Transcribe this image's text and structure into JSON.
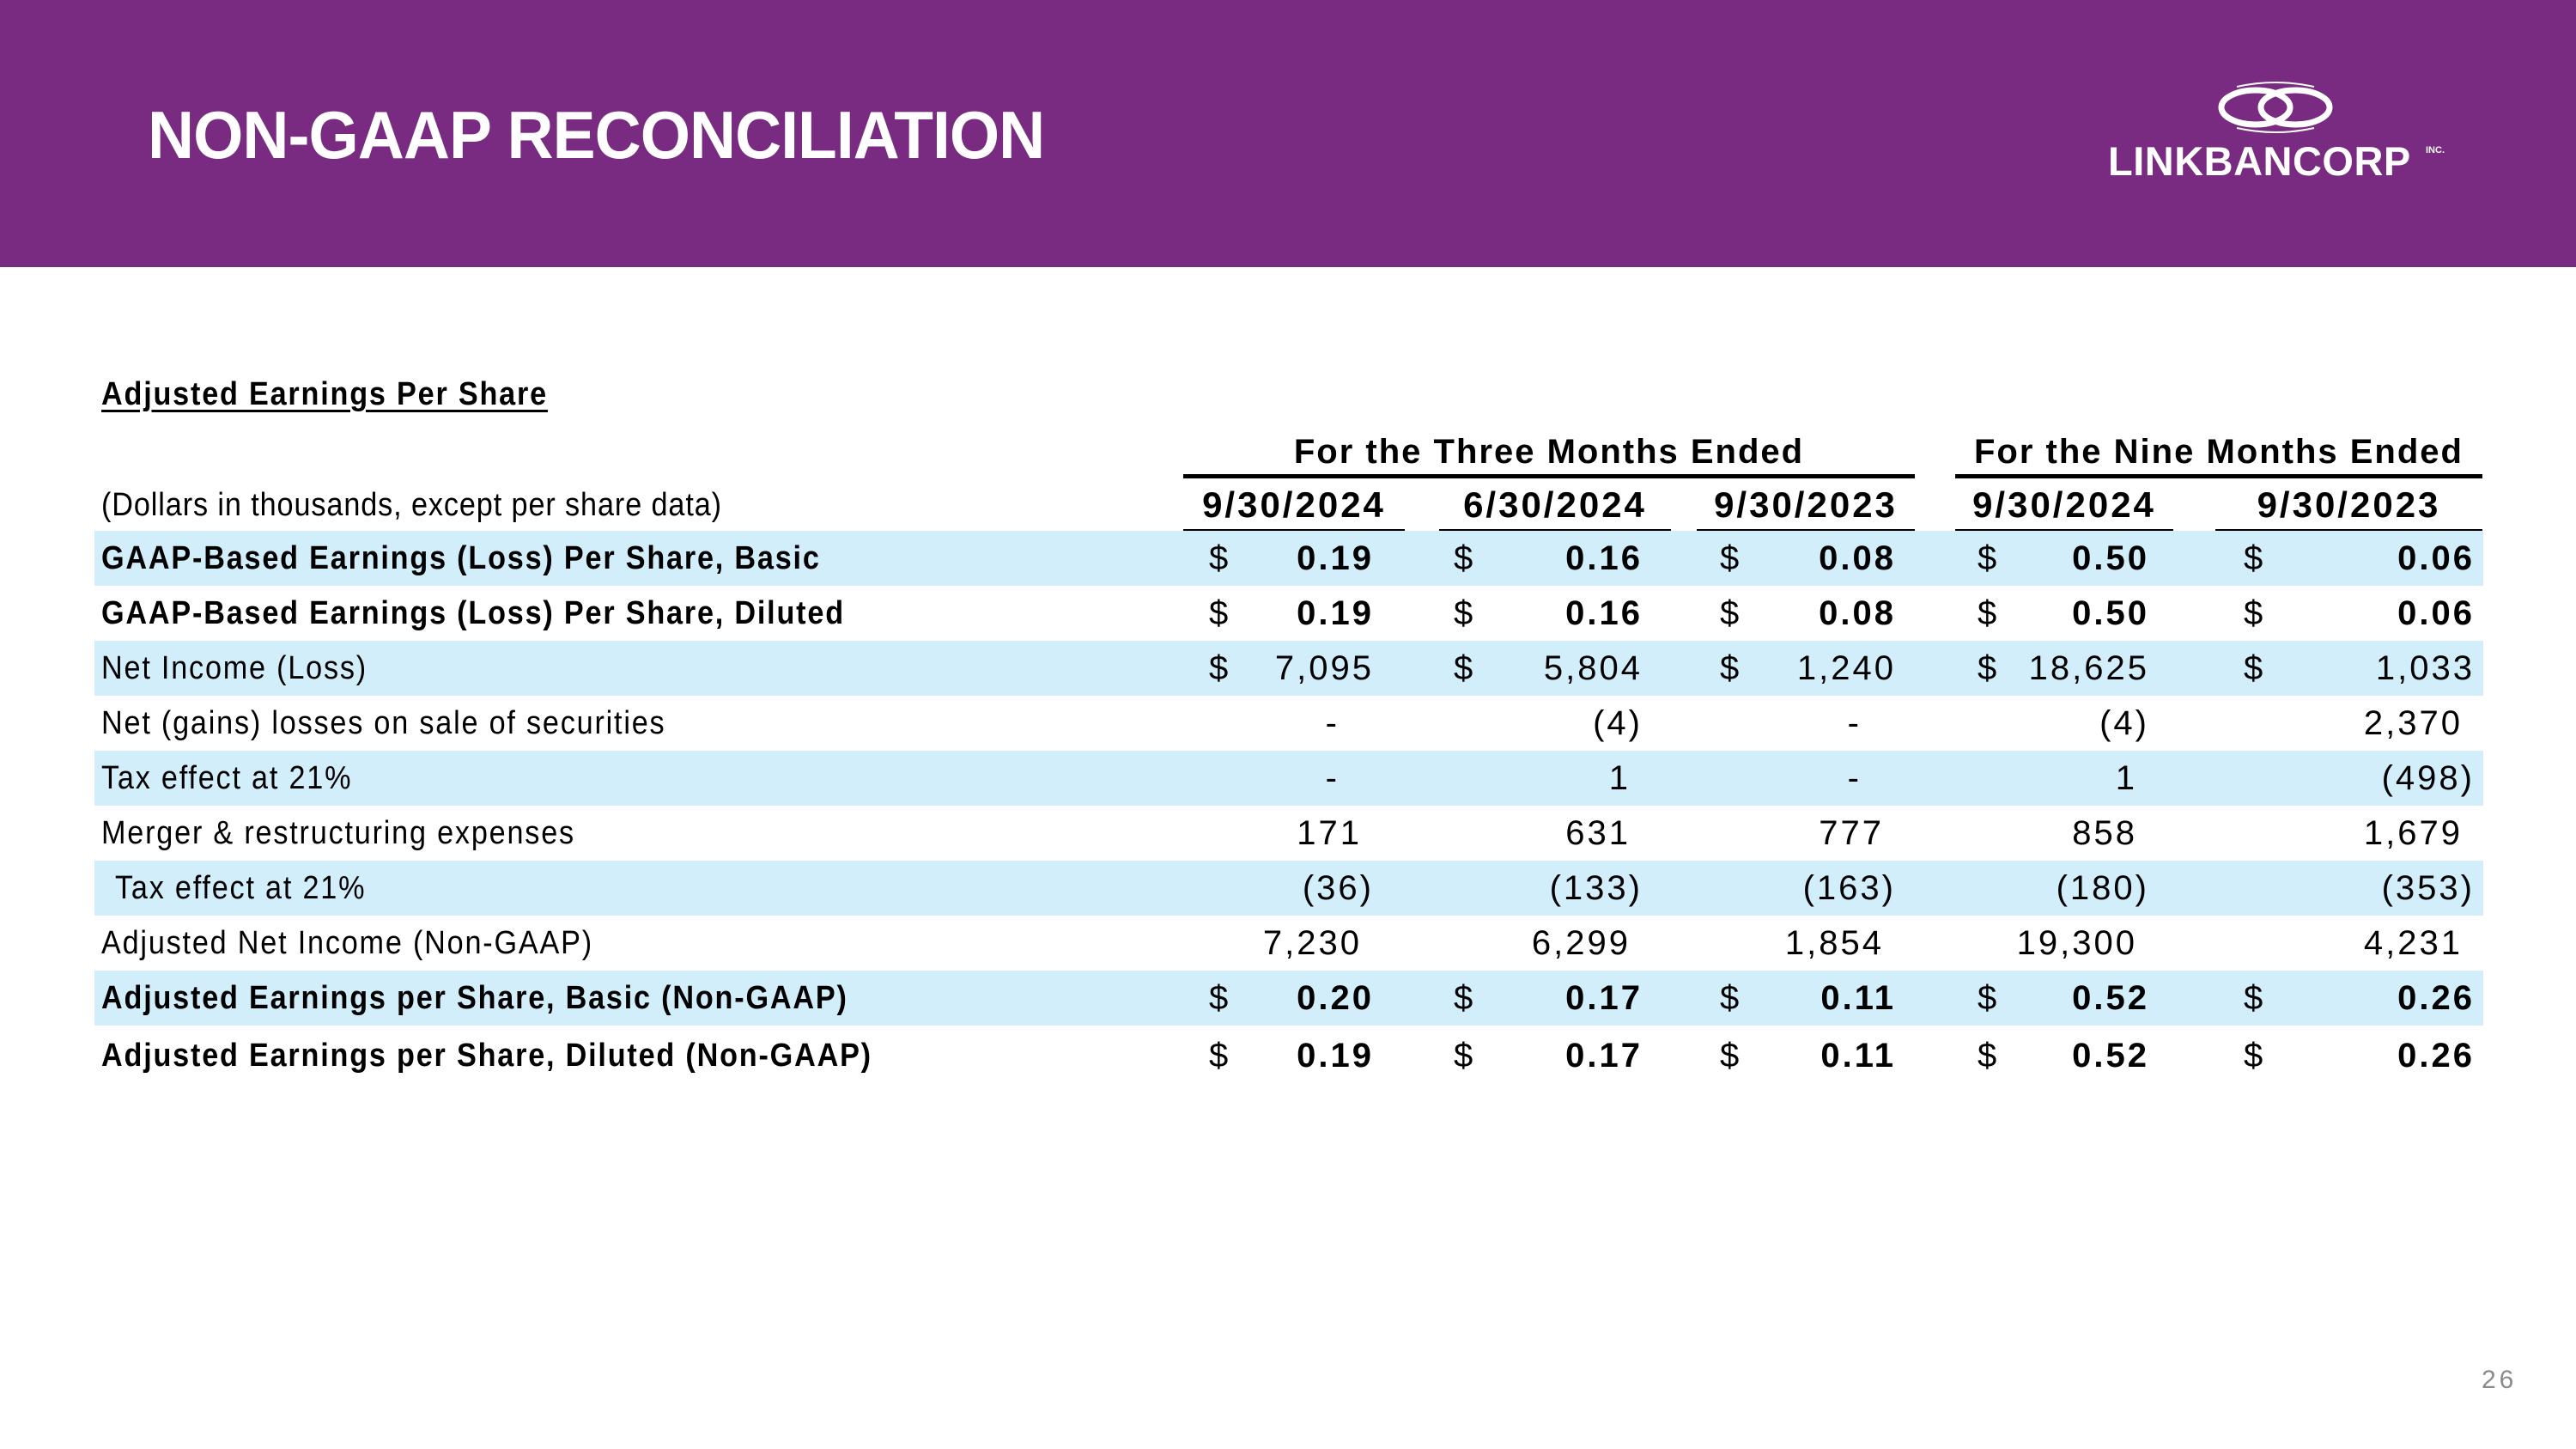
{
  "header": {
    "title": "NON-GAAP RECONCILIATION",
    "background_color": "#792a81",
    "logo": {
      "name": "LINKBANCORP",
      "suffix": "INC.",
      "icon": "interlocking-rings-icon"
    }
  },
  "table": {
    "section_title": "Adjusted Earnings Per Share",
    "units_note": "(Dollars in thousands, except per share data)",
    "row_shade_color": "#d1eefa",
    "column_groups": [
      {
        "label": "For the Three Months Ended",
        "columns": [
          "9/30/2024",
          "6/30/2024",
          "9/30/2023"
        ]
      },
      {
        "label": "For the Nine Months Ended",
        "columns": [
          "9/30/2024",
          "9/30/2023"
        ]
      }
    ],
    "columns": [
      "9/30/2024",
      "6/30/2024",
      "9/30/2023",
      "9/30/2024",
      "9/30/2023"
    ],
    "rows": [
      {
        "label": "GAAP-Based Earnings (Loss) Per Share, Basic",
        "bold": true,
        "shaded": true,
        "currency": "$",
        "values": [
          "0.19",
          "0.16",
          "0.08",
          "0.50",
          "0.06"
        ]
      },
      {
        "label": "GAAP-Based Earnings (Loss) Per Share, Diluted",
        "bold": true,
        "shaded": false,
        "currency": "$",
        "values": [
          "0.19",
          "0.16",
          "0.08",
          "0.50",
          "0.06"
        ]
      },
      {
        "label": "Net Income (Loss)",
        "bold": false,
        "shaded": true,
        "currency": "$",
        "values": [
          "7,095",
          "5,804",
          "1,240",
          "18,625",
          "1,033"
        ]
      },
      {
        "label": "Net (gains) losses on sale of securities",
        "bold": false,
        "shaded": false,
        "currency": "",
        "values": [
          "-",
          "(4)",
          "-",
          "(4)",
          "2,370"
        ]
      },
      {
        "label": "Tax effect at 21%",
        "bold": false,
        "shaded": true,
        "currency": "",
        "values": [
          "-",
          "1",
          "-",
          "1",
          "(498)"
        ]
      },
      {
        "label": "Merger & restructuring expenses",
        "bold": false,
        "shaded": false,
        "currency": "",
        "values": [
          "171",
          "631",
          "777",
          "858",
          "1,679"
        ]
      },
      {
        "label": "Tax effect at 21%",
        "bold": false,
        "shaded": true,
        "currency": "",
        "indent": true,
        "values": [
          "(36)",
          "(133)",
          "(163)",
          "(180)",
          "(353)"
        ]
      },
      {
        "label": "Adjusted Net Income (Non-GAAP)",
        "bold": false,
        "shaded": false,
        "currency": "",
        "values": [
          "7,230",
          "6,299",
          "1,854",
          "19,300",
          "4,231"
        ]
      },
      {
        "label": "Adjusted Earnings per Share, Basic (Non-GAAP)",
        "bold": true,
        "shaded": true,
        "currency": "$",
        "values": [
          "0.20",
          "0.17",
          "0.11",
          "0.52",
          "0.26"
        ]
      },
      {
        "label": "Adjusted Earnings per Share, Diluted (Non-GAAP)",
        "bold": true,
        "shaded": false,
        "currency": "$",
        "values": [
          "0.19",
          "0.17",
          "0.11",
          "0.52",
          "0.26"
        ]
      }
    ]
  },
  "footer": {
    "page_number": "26"
  }
}
